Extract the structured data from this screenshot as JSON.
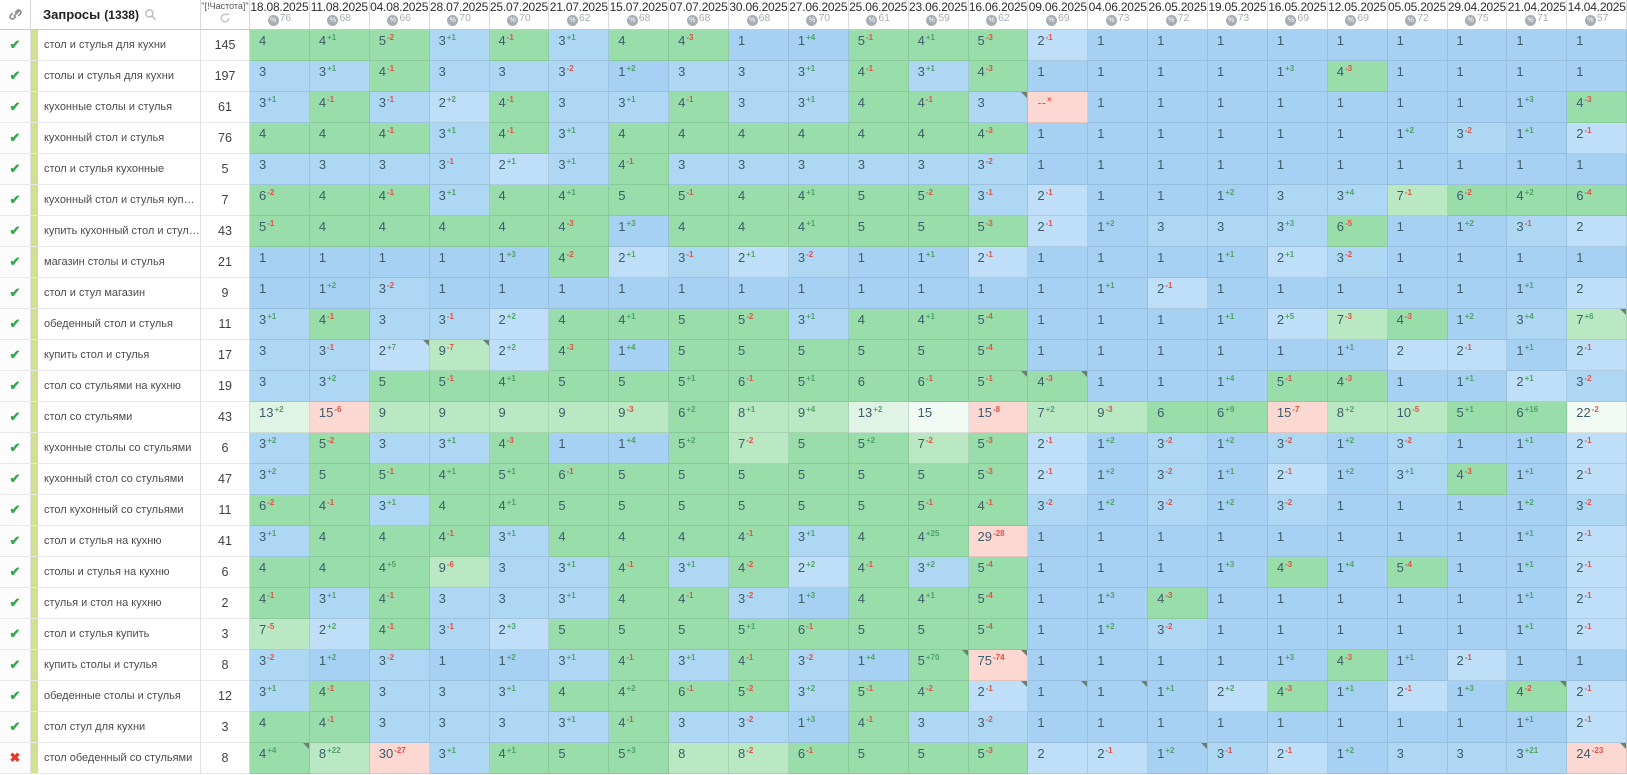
{
  "colors": {
    "pos1": "#a6d1f2",
    "pos2": "#bedff7",
    "pos3": "#aed7f4",
    "green": "#98ddaa",
    "green_light": "#b9e8c3",
    "pale": "#dff4e5",
    "near_white": "#f2faf4",
    "pink": "#fbd8d2",
    "sup_up": "#4fa36b",
    "sup_down": "#e45146",
    "check": "#35a94e",
    "cross": "#e23b2e",
    "strip": "#cfe292"
  },
  "table": {
    "queries_header": "Запросы",
    "queries_count": "(1338)",
    "frequency_header": "\"[!Частота]\"",
    "dropout_text": "--",
    "dropout_sup": "×",
    "columns": [
      {
        "date": "18.08.2025",
        "count": 76
      },
      {
        "date": "11.08.2025",
        "count": 68
      },
      {
        "date": "04.08.2025",
        "count": 66
      },
      {
        "date": "28.07.2025",
        "count": 70
      },
      {
        "date": "25.07.2025",
        "count": 70
      },
      {
        "date": "21.07.2025",
        "count": 62
      },
      {
        "date": "15.07.2025",
        "count": 68
      },
      {
        "date": "07.07.2025",
        "count": 68
      },
      {
        "date": "30.06.2025",
        "count": 68
      },
      {
        "date": "27.06.2025",
        "count": 70
      },
      {
        "date": "25.06.2025",
        "count": 61
      },
      {
        "date": "23.06.2025",
        "count": 59
      },
      {
        "date": "16.06.2025",
        "count": 62
      },
      {
        "date": "09.06.2025",
        "count": 69
      },
      {
        "date": "04.06.2025",
        "count": 73
      },
      {
        "date": "26.05.2025",
        "count": 72
      },
      {
        "date": "19.05.2025",
        "count": 73
      },
      {
        "date": "16.05.2025",
        "count": 69
      },
      {
        "date": "12.05.2025",
        "count": 69
      },
      {
        "date": "05.05.2025",
        "count": 72
      },
      {
        "date": "29.04.2025",
        "count": 75
      },
      {
        "date": "21.04.2025",
        "count": 71
      },
      {
        "date": "14.04.2025",
        "count": 57
      }
    ],
    "rows": [
      {
        "status": "check",
        "keyword": "стол и стулья для кухни",
        "frequency": 145,
        "positions": [
          4,
          4,
          5,
          3,
          4,
          3,
          4,
          4,
          1,
          1,
          5,
          4,
          5,
          2,
          1,
          1,
          1,
          1,
          1,
          1,
          1,
          1,
          1
        ],
        "last_delta": "",
        "markers": []
      },
      {
        "status": "check",
        "keyword": "столы и стулья для кухни",
        "frequency": 197,
        "positions": [
          3,
          3,
          4,
          3,
          3,
          3,
          1,
          3,
          3,
          3,
          4,
          3,
          4,
          1,
          1,
          1,
          1,
          1,
          4,
          1,
          1,
          1,
          1
        ],
        "last_delta": "",
        "markers": []
      },
      {
        "status": "check",
        "keyword": "кухонные столы и стулья",
        "frequency": 61,
        "positions": [
          3,
          4,
          3,
          2,
          4,
          3,
          3,
          4,
          3,
          3,
          4,
          4,
          3,
          "--",
          1,
          1,
          1,
          1,
          1,
          1,
          1,
          1,
          4
        ],
        "last_delta": "-3",
        "markers": [
          13
        ]
      },
      {
        "status": "check",
        "keyword": "кухонный стол и стулья",
        "frequency": 76,
        "positions": [
          4,
          4,
          4,
          3,
          4,
          3,
          4,
          4,
          4,
          4,
          4,
          4,
          4,
          1,
          1,
          1,
          1,
          1,
          1,
          1,
          3,
          1,
          2
        ],
        "last_delta": "-1",
        "markers": []
      },
      {
        "status": "check",
        "keyword": "стол и стулья кухонные",
        "frequency": 5,
        "positions": [
          3,
          3,
          3,
          3,
          2,
          3,
          4,
          3,
          3,
          3,
          3,
          3,
          3,
          1,
          1,
          1,
          1,
          1,
          1,
          1,
          1,
          1,
          1
        ],
        "last_delta": "",
        "markers": []
      },
      {
        "status": "check",
        "keyword": "кухонный стол и стулья купить",
        "frequency": 7,
        "positions": [
          6,
          4,
          4,
          3,
          4,
          4,
          5,
          5,
          4,
          4,
          5,
          5,
          3,
          2,
          1,
          1,
          1,
          3,
          3,
          7,
          6,
          4,
          6
        ],
        "last_delta": "-4",
        "markers": []
      },
      {
        "status": "check",
        "keyword": "купить кухонный стол и стулья",
        "frequency": 43,
        "positions": [
          5,
          4,
          4,
          4,
          4,
          4,
          1,
          4,
          4,
          4,
          5,
          5,
          5,
          2,
          1,
          3,
          3,
          3,
          6,
          1,
          1,
          3,
          2
        ],
        "last_delta": "",
        "markers": []
      },
      {
        "status": "check",
        "keyword": "магазин столы и стулья",
        "frequency": 21,
        "positions": [
          1,
          1,
          1,
          1,
          1,
          4,
          2,
          3,
          2,
          3,
          1,
          1,
          2,
          1,
          1,
          1,
          1,
          2,
          3,
          1,
          1,
          1,
          1
        ],
        "last_delta": "",
        "markers": []
      },
      {
        "status": "check",
        "keyword": "стол и стул магазин",
        "frequency": 9,
        "positions": [
          1,
          1,
          3,
          1,
          1,
          1,
          1,
          1,
          1,
          1,
          1,
          1,
          1,
          1,
          1,
          2,
          1,
          1,
          1,
          1,
          1,
          1,
          2
        ],
        "last_delta": "",
        "markers": []
      },
      {
        "status": "check",
        "keyword": "обеденный стол и стулья",
        "frequency": 11,
        "positions": [
          3,
          4,
          3,
          3,
          2,
          4,
          4,
          5,
          5,
          3,
          4,
          4,
          5,
          1,
          1,
          1,
          1,
          2,
          7,
          4,
          1,
          3,
          7
        ],
        "last_delta": "+6",
        "markers": [
          23
        ]
      },
      {
        "status": "check",
        "keyword": "купить стол и стулья",
        "frequency": 17,
        "positions": [
          3,
          3,
          2,
          9,
          2,
          4,
          1,
          5,
          5,
          5,
          5,
          5,
          5,
          1,
          1,
          1,
          1,
          1,
          1,
          2,
          2,
          1,
          2
        ],
        "last_delta": "-1",
        "markers": [
          3,
          4
        ]
      },
      {
        "status": "check",
        "keyword": "стол со стульями на кухню",
        "frequency": 19,
        "positions": [
          3,
          3,
          5,
          5,
          4,
          5,
          5,
          5,
          6,
          5,
          6,
          6,
          5,
          4,
          1,
          1,
          1,
          5,
          4,
          1,
          1,
          2,
          3
        ],
        "last_delta": "-2",
        "markers": [
          13,
          14
        ]
      },
      {
        "status": "check",
        "keyword": "стол со стульями",
        "frequency": 43,
        "positions": [
          13,
          15,
          9,
          9,
          9,
          9,
          9,
          6,
          8,
          9,
          13,
          15,
          15,
          7,
          9,
          6,
          6,
          15,
          8,
          10,
          5,
          6,
          22
        ],
        "last_delta": "-2",
        "markers": []
      },
      {
        "status": "check",
        "keyword": "кухонные столы со стульями",
        "frequency": 6,
        "positions": [
          3,
          5,
          3,
          3,
          4,
          1,
          1,
          5,
          7,
          5,
          5,
          7,
          5,
          2,
          1,
          3,
          1,
          3,
          1,
          3,
          1,
          1,
          2
        ],
        "last_delta": "-1",
        "markers": []
      },
      {
        "status": "check",
        "keyword": "кухонный стол со стульями",
        "frequency": 47,
        "positions": [
          3,
          5,
          5,
          4,
          5,
          6,
          5,
          5,
          5,
          5,
          5,
          5,
          5,
          2,
          1,
          3,
          1,
          2,
          1,
          3,
          4,
          1,
          2
        ],
        "last_delta": "-1",
        "markers": []
      },
      {
        "status": "check",
        "keyword": "стол кухонный со стульями",
        "frequency": 11,
        "positions": [
          6,
          4,
          3,
          4,
          4,
          5,
          5,
          5,
          5,
          5,
          5,
          5,
          4,
          3,
          1,
          3,
          1,
          3,
          1,
          1,
          1,
          1,
          3
        ],
        "last_delta": "-2",
        "markers": []
      },
      {
        "status": "check",
        "keyword": "стол и стулья на кухню",
        "frequency": 41,
        "positions": [
          3,
          4,
          4,
          4,
          3,
          4,
          4,
          4,
          4,
          3,
          4,
          4,
          29,
          1,
          1,
          1,
          1,
          1,
          1,
          1,
          1,
          1,
          2
        ],
        "last_delta": "-1",
        "markers": []
      },
      {
        "status": "check",
        "keyword": "столы и стулья на кухню",
        "frequency": 6,
        "positions": [
          4,
          4,
          4,
          9,
          3,
          3,
          4,
          3,
          4,
          2,
          4,
          3,
          5,
          1,
          1,
          1,
          1,
          4,
          1,
          5,
          1,
          1,
          2
        ],
        "last_delta": "-1",
        "markers": []
      },
      {
        "status": "check",
        "keyword": "стулья и стол на кухню",
        "frequency": 2,
        "positions": [
          4,
          3,
          4,
          3,
          3,
          3,
          4,
          4,
          3,
          1,
          4,
          4,
          5,
          1,
          1,
          4,
          1,
          1,
          1,
          1,
          1,
          1,
          2
        ],
        "last_delta": "-1",
        "markers": []
      },
      {
        "status": "check",
        "keyword": "стол и стулья купить",
        "frequency": 3,
        "positions": [
          7,
          2,
          4,
          3,
          2,
          5,
          5,
          5,
          5,
          6,
          5,
          5,
          5,
          1,
          1,
          3,
          1,
          1,
          1,
          1,
          1,
          1,
          2
        ],
        "last_delta": "-1",
        "markers": []
      },
      {
        "status": "check",
        "keyword": "купить столы и стулья",
        "frequency": 8,
        "positions": [
          3,
          1,
          3,
          1,
          1,
          3,
          4,
          3,
          4,
          3,
          1,
          5,
          75,
          1,
          1,
          1,
          1,
          1,
          4,
          1,
          2,
          1,
          1
        ],
        "last_delta": "",
        "markers": [
          12,
          13
        ]
      },
      {
        "status": "check",
        "keyword": "обеденные столы и стулья",
        "frequency": 12,
        "positions": [
          3,
          4,
          3,
          3,
          3,
          4,
          4,
          6,
          5,
          3,
          5,
          4,
          2,
          1,
          1,
          1,
          2,
          4,
          1,
          2,
          1,
          4,
          2
        ],
        "last_delta": "-1",
        "markers": [
          13,
          14,
          15,
          22
        ]
      },
      {
        "status": "check",
        "keyword": "стол стул для кухни",
        "frequency": 3,
        "positions": [
          4,
          4,
          3,
          3,
          3,
          3,
          4,
          3,
          3,
          1,
          4,
          3,
          3,
          1,
          1,
          1,
          1,
          1,
          1,
          1,
          1,
          1,
          2
        ],
        "last_delta": "-1",
        "markers": []
      },
      {
        "status": "cross",
        "keyword": "стол обеденный со стульями",
        "frequency": 8,
        "positions": [
          4,
          8,
          30,
          3,
          4,
          5,
          5,
          8,
          8,
          6,
          5,
          5,
          5,
          2,
          2,
          1,
          3,
          2,
          1,
          3,
          3,
          3,
          24
        ],
        "last_delta": "-23",
        "markers": [
          1,
          16,
          23
        ]
      }
    ]
  }
}
